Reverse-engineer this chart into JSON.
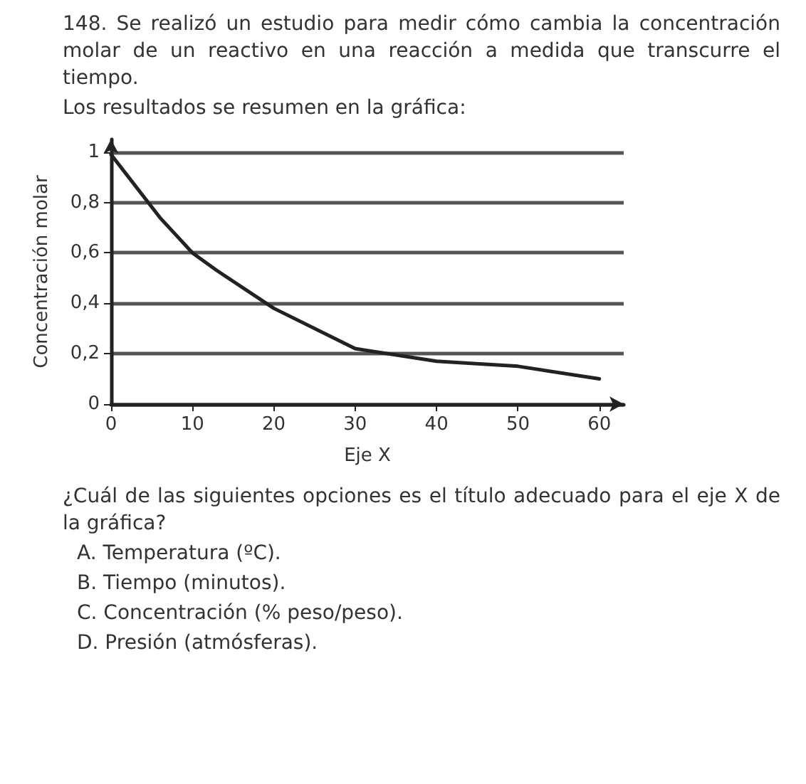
{
  "chart_data": {
    "type": "line",
    "title": "148. Se realizó un estudio para medir cómo cambia la concentración molar de un reactivo en una reacción a medida que transcurre el tiempo.",
    "subtitle": "Los resultados se resumen en la gráfica:",
    "xlabel": "Eje X",
    "ylabel": "Concentración molar",
    "x": [
      0,
      6,
      10,
      13,
      20,
      30,
      40,
      50,
      60
    ],
    "series": [
      {
        "color": "#222222",
        "values": [
          0.99,
          0.74,
          0.6,
          0.53,
          0.38,
          0.22,
          0.17,
          0.15,
          0.1
        ]
      }
    ],
    "xlim": [
      0,
      63
    ],
    "xticks": [
      0,
      10,
      20,
      30,
      40,
      50,
      60
    ],
    "ylim": [
      0,
      1.05
    ],
    "yticks": [
      0,
      {
        "value": 0.2,
        "label": "0,2"
      },
      {
        "value": 0.4,
        "label": "0,4"
      },
      {
        "value": 0.6,
        "label": "0,6"
      },
      {
        "value": 0.8,
        "label": "0,8"
      },
      1
    ],
    "grid": "y",
    "marker": "none",
    "line_style": "solid",
    "annotations": [
      "¿Cuál de las siguientes opciones es el título adecuado para el eje X de la gráfica?",
      "A. Temperatura (ºC).",
      "B. Tiempo (minutos).",
      "C. Concentración (% peso/peso).",
      "D. Presión (atmósferas)."
    ]
  }
}
